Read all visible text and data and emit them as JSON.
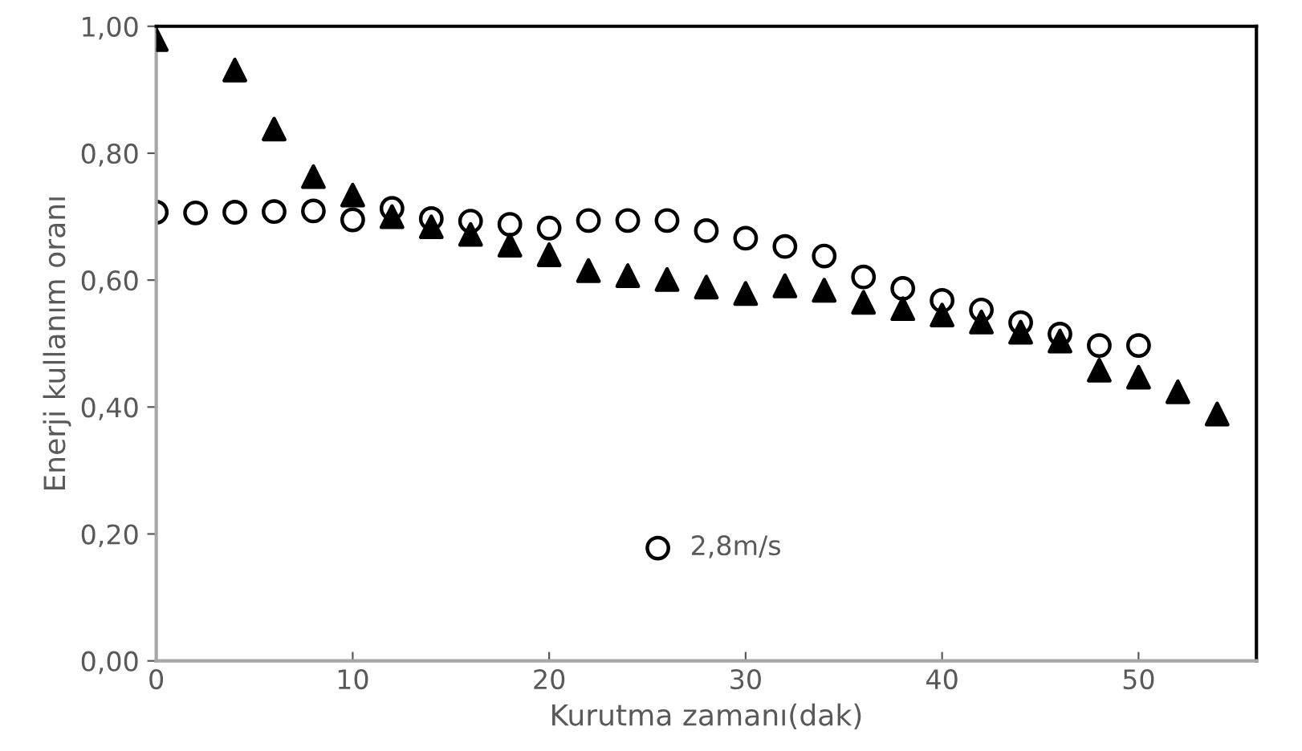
{
  "chart_data": {
    "type": "scatter",
    "xlabel": "Kurutma zamanı(dak)",
    "ylabel": "Enerji kullanım oranı",
    "xlim": [
      0,
      56
    ],
    "xticks": [
      0,
      10,
      20,
      30,
      40,
      50
    ],
    "ylim": [
      0,
      1.0
    ],
    "yticks": [
      {
        "value": 0,
        "label": "0,00"
      },
      {
        "value": 0.2,
        "label": "0,20"
      },
      {
        "value": 0.4,
        "label": "0,40"
      },
      {
        "value": 0.6,
        "label": "0,60"
      },
      {
        "value": 0.8,
        "label": "0,80"
      },
      {
        "value": 1.0,
        "label": "1,00"
      }
    ],
    "grid": false,
    "legend": "bottom",
    "series": [
      {
        "name": "2,8m/s",
        "color": "#000000",
        "marker": "circle",
        "x": [
          0,
          2,
          4,
          6,
          8,
          10,
          12,
          14,
          16,
          18,
          20,
          22,
          24,
          26,
          28,
          30,
          32,
          34,
          36,
          38,
          40,
          42,
          44,
          46,
          48,
          50
        ],
        "values": [
          0.707,
          0.706,
          0.707,
          0.708,
          0.709,
          0.695,
          0.713,
          0.697,
          0.693,
          0.688,
          0.682,
          0.694,
          0.694,
          0.694,
          0.678,
          0.666,
          0.653,
          0.638,
          0.605,
          0.587,
          0.568,
          0.553,
          0.533,
          0.515,
          0.497,
          0.497
        ]
      },
      {
        "color": "#000000",
        "marker": "triangle",
        "x": [
          0,
          4,
          6,
          8,
          10,
          12,
          14,
          16,
          18,
          20,
          22,
          24,
          26,
          28,
          30,
          32,
          34,
          36,
          38,
          40,
          42,
          44,
          46,
          48,
          50,
          52,
          54
        ],
        "values": [
          0.979,
          0.931,
          0.838,
          0.763,
          0.734,
          0.7,
          0.684,
          0.672,
          0.655,
          0.64,
          0.615,
          0.607,
          0.601,
          0.589,
          0.579,
          0.591,
          0.584,
          0.565,
          0.555,
          0.545,
          0.534,
          0.518,
          0.504,
          0.458,
          0.447,
          0.424,
          0.389
        ]
      }
    ]
  }
}
